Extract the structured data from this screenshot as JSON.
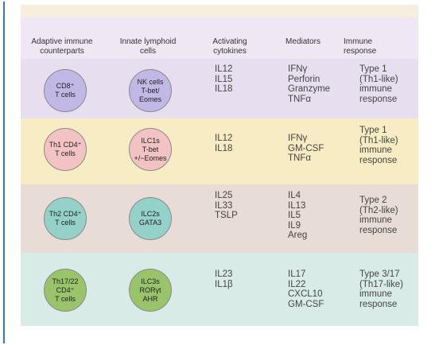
{
  "headers": {
    "adaptive": "Adaptive immune\ncounterparts",
    "innate": "Innate lymphoid\ncells",
    "cytokines": "Activating\ncytokines",
    "mediators": "Mediators",
    "response": "Immune\nresponse"
  },
  "rows": [
    {
      "color": "#e7dfef",
      "cell_fill": "#c2b8e6",
      "adaptive": "CD8⁺\nT cells",
      "innate": "NK cells\nT-bet/\nEomes",
      "cytokines": "IL12\nIL15\nIL18",
      "mediators": "IFNγ\nPerforin\nGranzyme\nTNFα",
      "response": "Type 1\n(Th1-like)\nimmune\nresponse"
    },
    {
      "color": "#f7ecc3",
      "cell_fill": "#f3c3c3",
      "adaptive": "Th1 CD4⁺\nT cells",
      "innate": "ILC1s\nT-bet\n+/−Eomes",
      "cytokines": "IL12\nIL18",
      "mediators": "IFNγ\nGM-CSF\nTNFα",
      "response": "Type 1\n(Th1-like)\nimmune\nresponse"
    },
    {
      "color": "#e8dcd6",
      "cell_fill": "#93d1c9",
      "adaptive": "Th2 CD4⁺\nT cells",
      "innate": "ILC2s\nGATA3",
      "cytokines": "IL25\nIL33\nTSLP",
      "mediators": "IL4\nIL13\nIL5\nIL9\nAreg",
      "response": "Type 2\n(Th2-like)\nimmune\nresponse"
    },
    {
      "color": "#d9ebe7",
      "cell_fill": "#99c46a",
      "adaptive": "Th17/22\nCD4⁺\nT cells",
      "innate": "ILC3s\nRORγt\nAHR",
      "cytokines": "IL23\nIL1β",
      "mediators": "IL17\nIL22\nCXCL10\nGM-CSF",
      "response": "Type 3/17\n(Th17-like)\nimmune\nresponse"
    }
  ]
}
